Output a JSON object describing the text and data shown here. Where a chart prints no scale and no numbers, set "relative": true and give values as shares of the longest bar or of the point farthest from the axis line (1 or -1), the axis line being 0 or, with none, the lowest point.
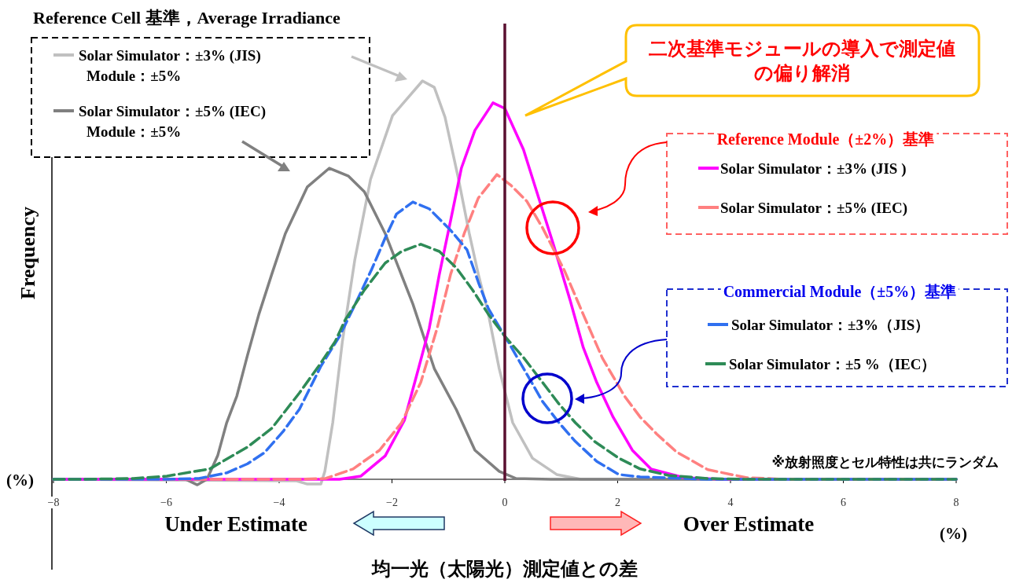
{
  "chart_data": {
    "type": "line",
    "relative": true,
    "xlabel": "均一光（太陽光）測定値との差",
    "ylabel": "Frequency",
    "xlim": [
      -8,
      8
    ],
    "xticks": [
      {
        "value": -8,
        "label": "−8"
      },
      {
        "value": -6,
        "label": "−6"
      },
      {
        "value": -4,
        "label": "−4"
      },
      {
        "value": -2,
        "label": "−2"
      },
      0,
      2,
      4,
      6,
      8
    ],
    "tick_labels": "x",
    "grid": false,
    "legend": "top left",
    "ref_lines": [
      {
        "axis": "x",
        "value": 0,
        "color": "#5a1030"
      }
    ],
    "annotations": [
      "Reference Cell 基準，Average Irradiance",
      "Reference Module（±2%）基準",
      "Commercial Module（±5%）基準",
      "二次基準モジュールの導入で測定値の偏り解消",
      "※放射照度とセル特性は共にランダム",
      "Under Estimate",
      "Over Estimate",
      "(%)",
      "(%)"
    ],
    "series": [
      {
        "name": "Solar  Simulator：±3% (JIS)\nModule：±5%",
        "color": "#c0c0c0",
        "line_style": "solid",
        "x": [
          -8,
          -3.69,
          -3.5,
          -3.32,
          -3.26,
          -3.19,
          -3.05,
          -2.88,
          -2.66,
          -2.38,
          -1.99,
          -1.46,
          -1.25,
          -1.06,
          -0.82,
          -0.63,
          -0.47,
          -0.29,
          -0.1,
          0.14,
          0.49,
          0.92,
          1.35,
          8
        ],
        "values": [
          0,
          -0.004,
          -0.012,
          -0.012,
          -0.012,
          0.02,
          0.142,
          0.345,
          0.55,
          0.753,
          0.913,
          1,
          0.984,
          0.909,
          0.753,
          0.617,
          0.515,
          0.414,
          0.278,
          0.142,
          0.053,
          0.012,
          0,
          0
        ]
      },
      {
        "name": "Solar  Simulator：±5% (IEC)\nModule：±5%",
        "color": "#808080",
        "line_style": "solid",
        "x": [
          -8,
          -5.66,
          -5.45,
          -5.28,
          -5.09,
          -4.93,
          -4.75,
          -4.56,
          -4.36,
          -4.13,
          -3.89,
          -3.5,
          -3.11,
          -2.77,
          -2.49,
          -2.12,
          -1.63,
          -1.25,
          -0.86,
          -0.53,
          -0.1,
          0.2,
          0.81,
          8
        ],
        "values": [
          0,
          0,
          -0.014,
          0,
          0.059,
          0.142,
          0.209,
          0.312,
          0.414,
          0.515,
          0.617,
          0.734,
          0.781,
          0.761,
          0.722,
          0.617,
          0.44,
          0.278,
          0.175,
          0.073,
          0.02,
          0.002,
          0,
          0
        ]
      },
      {
        "name": "Solar Simulator：±3% (JIS )",
        "color": "#ff00ff",
        "line_style": "solid",
        "x": [
          -8,
          -2.93,
          -2.55,
          -2.12,
          -1.78,
          -1.53,
          -1.34,
          -1.16,
          -0.96,
          -0.77,
          -0.53,
          -0.21,
          0,
          0.33,
          0.57,
          0.86,
          1.16,
          1.39,
          1.63,
          1.92,
          2.26,
          2.59,
          3.18,
          3.87,
          8
        ],
        "values": [
          0,
          0,
          0.008,
          0.059,
          0.148,
          0.278,
          0.379,
          0.515,
          0.65,
          0.781,
          0.876,
          0.945,
          0.931,
          0.828,
          0.72,
          0.59,
          0.448,
          0.331,
          0.243,
          0.156,
          0.073,
          0.026,
          0.004,
          0,
          0
        ]
      },
      {
        "name": "Solar Simulator：±5% (IEC)",
        "color": "#ff8080",
        "line_style": "dashed",
        "x": [
          -8,
          -3.65,
          -3.18,
          -2.69,
          -2.22,
          -1.83,
          -1.49,
          -1.2,
          -0.96,
          -0.72,
          -0.47,
          -0.14,
          0.1,
          0.39,
          0.67,
          1.06,
          1.39,
          1.73,
          2.12,
          2.4,
          2.69,
          3.04,
          3.6,
          4.29,
          4.99,
          8
        ],
        "values": [
          0,
          0,
          0.002,
          0.026,
          0.073,
          0.142,
          0.243,
          0.379,
          0.515,
          0.617,
          0.706,
          0.765,
          0.739,
          0.698,
          0.631,
          0.523,
          0.414,
          0.304,
          0.209,
          0.156,
          0.114,
          0.069,
          0.024,
          0.004,
          0,
          0
        ]
      },
      {
        "name": "Solar Simulator：±3%（JIS）",
        "color": "#3070f0",
        "line_style": "dashed",
        "x": [
          -8,
          -5.99,
          -5.42,
          -4.93,
          -4.56,
          -4.26,
          -3.93,
          -3.64,
          -3.26,
          -2.93,
          -2.65,
          -2.36,
          -2.12,
          -1.92,
          -1.63,
          -1.34,
          -0.96,
          -0.67,
          -0.47,
          -0.29,
          0.06,
          0.39,
          0.67,
          0.96,
          1.25,
          1.63,
          2.02,
          2.4,
          3.6,
          8
        ],
        "values": [
          0,
          0,
          0.002,
          0.016,
          0.039,
          0.067,
          0.12,
          0.176,
          0.284,
          0.359,
          0.44,
          0.527,
          0.606,
          0.666,
          0.696,
          0.679,
          0.625,
          0.576,
          0.495,
          0.428,
          0.345,
          0.264,
          0.195,
          0.142,
          0.095,
          0.045,
          0.012,
          0.006,
          0,
          0
        ]
      },
      {
        "name": "Solar Simulator：±5 %（IEC）",
        "color": "#2e8b57",
        "line_style": "dashed",
        "x": [
          -8,
          -7.55,
          -6.58,
          -5.99,
          -5.23,
          -4.56,
          -4.13,
          -3.64,
          -3.3,
          -3.01,
          -2.83,
          -2.49,
          -2.12,
          -1.83,
          -1.49,
          -1.16,
          -0.86,
          -0.57,
          -0.29,
          0,
          0.33,
          0.67,
          0.96,
          1.25,
          1.59,
          2.02,
          2.4,
          2.9,
          3.6,
          4.29,
          8
        ],
        "values": [
          0,
          0,
          0.002,
          0.008,
          0.026,
          0.081,
          0.128,
          0.217,
          0.284,
          0.345,
          0.4,
          0.475,
          0.543,
          0.572,
          0.59,
          0.572,
          0.531,
          0.475,
          0.414,
          0.359,
          0.306,
          0.243,
          0.189,
          0.142,
          0.095,
          0.053,
          0.026,
          0.01,
          0.002,
          0,
          0
        ]
      }
    ]
  }
}
